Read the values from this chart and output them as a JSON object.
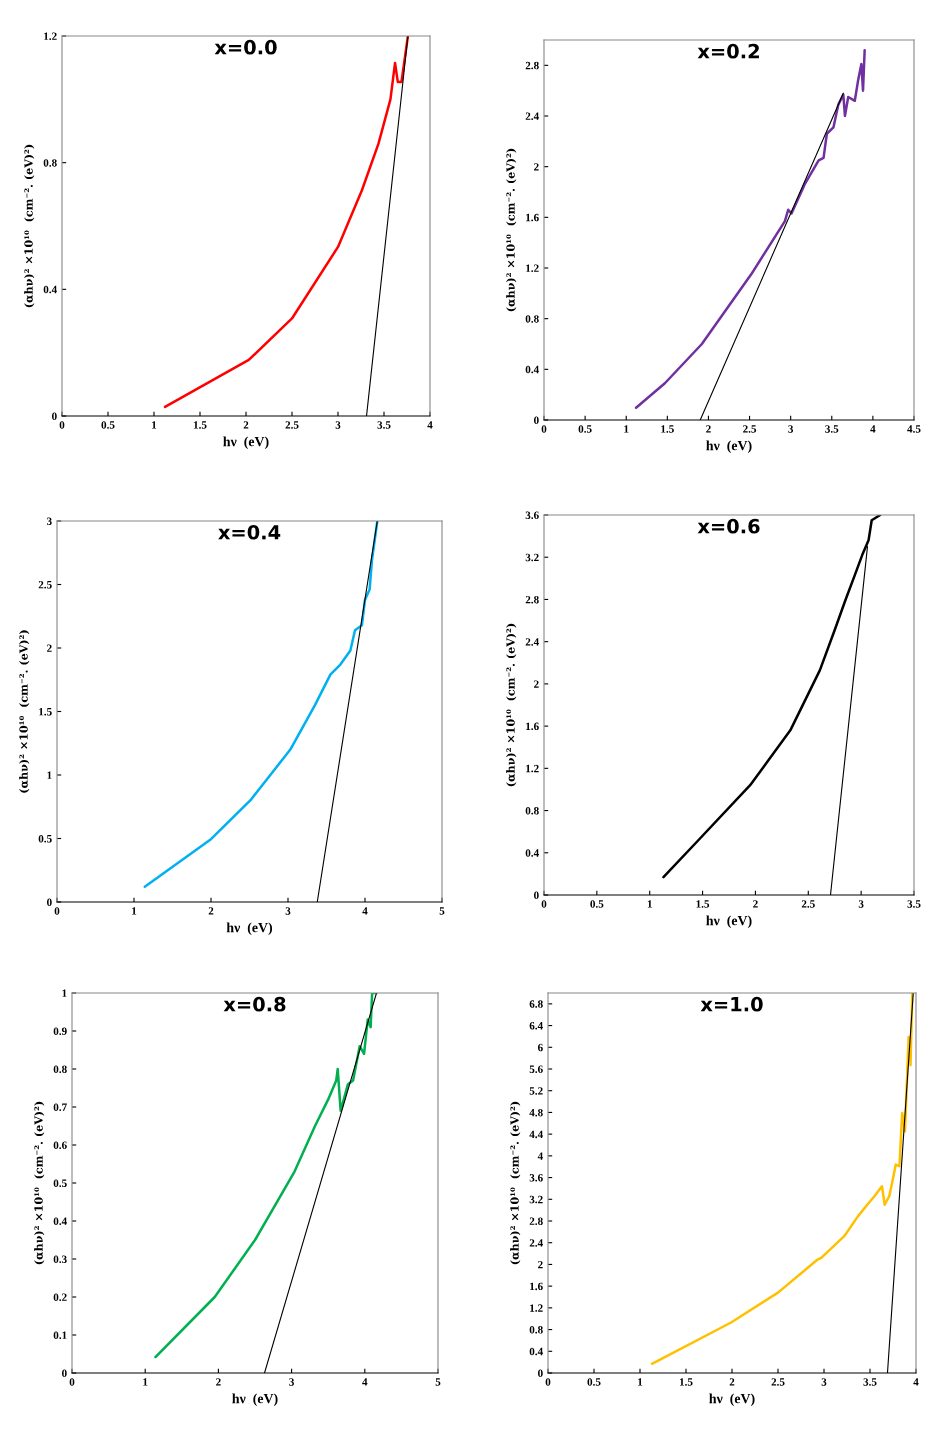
{
  "chart_data": [
    {
      "type": "line",
      "title": "x=0.0",
      "xlabel": "hν  (eV)",
      "ylabel": "(αhν)² ×10¹⁰  (cm⁻². (eV)²)",
      "xlim": [
        0,
        4
      ],
      "ylim": [
        0,
        1.2
      ],
      "xticks": [
        0,
        0.5,
        1,
        1.5,
        2,
        2.5,
        3,
        3.5,
        4
      ],
      "yticks": [
        0,
        0.4,
        0.8,
        1.2
      ],
      "series": [
        {
          "color": "#ff0000",
          "x": [
            1.12,
            2.03,
            2.5,
            3.0,
            3.26,
            3.44,
            3.57,
            3.62,
            3.65,
            3.69,
            3.76
          ],
          "values": [
            0.029,
            0.177,
            0.308,
            0.534,
            0.713,
            0.86,
            1.0,
            1.115,
            1.055,
            1.055,
            1.2
          ]
        },
        {
          "color": "#000000",
          "x": [
            3.31,
            3.76
          ],
          "values": [
            0,
            1.2
          ]
        }
      ]
    },
    {
      "type": "line",
      "title": "x=0.2",
      "xlabel": "hν  (eV)",
      "ylabel": "(αhν)² ×10¹⁰  (cm⁻². (eV)²)",
      "xlim": [
        0,
        4.5
      ],
      "ylim": [
        0,
        3.0
      ],
      "xticks": [
        0,
        0.5,
        1,
        1.5,
        2,
        2.5,
        3,
        3.5,
        4,
        4.5
      ],
      "yticks": [
        0,
        0.4,
        0.8,
        1.2,
        1.6,
        2,
        2.4,
        2.8
      ],
      "series": [
        {
          "color": "#7030a0",
          "x": [
            1.12,
            1.47,
            1.92,
            2.52,
            2.93,
            2.97,
            3.01,
            3.17,
            3.34,
            3.4,
            3.44,
            3.52,
            3.58,
            3.64,
            3.66,
            3.7,
            3.78,
            3.82,
            3.86,
            3.88,
            3.9
          ],
          "values": [
            0.097,
            0.29,
            0.6,
            1.15,
            1.57,
            1.66,
            1.63,
            1.86,
            2.05,
            2.07,
            2.26,
            2.31,
            2.49,
            2.57,
            2.4,
            2.55,
            2.52,
            2.68,
            2.81,
            2.6,
            2.92
          ]
        },
        {
          "color": "#000000",
          "x": [
            1.9,
            3.64
          ],
          "values": [
            0,
            2.58
          ]
        }
      ]
    },
    {
      "type": "line",
      "title": "x=0.4",
      "xlabel": "hν  (eV)",
      "ylabel": "(αhν)² ×10¹⁰  (cm⁻². (eV)²)",
      "xlim": [
        0,
        5
      ],
      "ylim": [
        0,
        3
      ],
      "xticks": [
        0,
        1,
        2,
        3,
        4,
        5
      ],
      "yticks": [
        0,
        0.5,
        1,
        1.5,
        2,
        2.5,
        3
      ],
      "series": [
        {
          "color": "#00b0f0",
          "x": [
            1.14,
            1.99,
            2.51,
            3.03,
            3.35,
            3.55,
            3.68,
            3.81,
            3.87,
            3.96,
            4.0,
            4.06,
            4.09,
            4.16
          ],
          "values": [
            0.12,
            0.49,
            0.8,
            1.2,
            1.55,
            1.79,
            1.87,
            1.98,
            2.14,
            2.18,
            2.38,
            2.46,
            2.69,
            3.0
          ]
        },
        {
          "color": "#000000",
          "x": [
            3.38,
            4.16
          ],
          "values": [
            0,
            3.0
          ]
        }
      ]
    },
    {
      "type": "line",
      "title": "x=0.6",
      "xlabel": "hν  (eV)",
      "ylabel": "(αhν)² ×10¹⁰  (cm⁻². (eV)²)",
      "xlim": [
        0,
        3.5
      ],
      "ylim": [
        0,
        3.6
      ],
      "xticks": [
        0,
        0.5,
        1,
        1.5,
        2,
        2.5,
        3,
        3.5
      ],
      "yticks": [
        0,
        0.4,
        0.8,
        1.2,
        1.6,
        2,
        2.4,
        2.8,
        3.2,
        3.6
      ],
      "series": [
        {
          "color": "#000000",
          "x": [
            1.13,
            1.48,
            1.95,
            2.33,
            2.61,
            2.75,
            2.85,
            2.94,
            3.01,
            3.07,
            3.1,
            3.18
          ],
          "values": [
            0.17,
            0.54,
            1.04,
            1.56,
            2.13,
            2.51,
            2.79,
            3.03,
            3.22,
            3.36,
            3.55,
            3.6
          ]
        },
        {
          "color": "#000000",
          "x": [
            2.71,
            3.06
          ],
          "values": [
            0,
            3.3
          ]
        }
      ]
    },
    {
      "type": "line",
      "title": "x=0.8",
      "xlabel": "hν  (eV)",
      "ylabel": "(αhν)² ×10¹⁰  (cm⁻². (eV)²)",
      "xlim": [
        0,
        5
      ],
      "ylim": [
        0,
        1
      ],
      "xticks": [
        0,
        1,
        2,
        3,
        4,
        5
      ],
      "yticks": [
        0,
        0.1,
        0.2,
        0.3,
        0.4,
        0.5,
        0.6,
        0.7,
        0.8,
        0.9,
        1
      ],
      "series": [
        {
          "color": "#00b050",
          "x": [
            1.14,
            1.95,
            2.5,
            3.04,
            3.32,
            3.5,
            3.61,
            3.63,
            3.67,
            3.77,
            3.84,
            3.93,
            3.99,
            4.04,
            4.08,
            4.1,
            4.16
          ],
          "values": [
            0.042,
            0.2,
            0.35,
            0.53,
            0.65,
            0.72,
            0.77,
            0.8,
            0.69,
            0.76,
            0.77,
            0.86,
            0.84,
            0.93,
            0.91,
            1.0,
            1.0
          ]
        },
        {
          "color": "#000000",
          "x": [
            2.63,
            4.16
          ],
          "values": [
            0,
            1.0
          ]
        }
      ]
    },
    {
      "type": "line",
      "title": "x=1.0",
      "xlabel": "hν  (eV)",
      "ylabel": "(αhν)² ×10¹⁰  (cm⁻². (eV)²)",
      "xlim": [
        0,
        4
      ],
      "ylim": [
        0,
        7.0
      ],
      "xticks": [
        0,
        0.5,
        1,
        1.5,
        2,
        2.5,
        3,
        3.5,
        4
      ],
      "yticks": [
        0,
        0.4,
        0.8,
        1.2,
        1.6,
        2,
        2.4,
        2.8,
        3.2,
        3.6,
        4,
        4.4,
        4.8,
        5.2,
        5.6,
        6,
        6.4,
        6.8
      ],
      "series": [
        {
          "color": "#ffc000",
          "x": [
            1.13,
            1.99,
            2.5,
            2.93,
            2.97,
            3.22,
            3.37,
            3.47,
            3.55,
            3.63,
            3.66,
            3.71,
            3.74,
            3.78,
            3.82,
            3.85,
            3.88,
            3.92,
            3.94,
            3.96
          ],
          "values": [
            0.17,
            0.93,
            1.48,
            2.09,
            2.12,
            2.52,
            2.89,
            3.1,
            3.26,
            3.44,
            3.1,
            3.26,
            3.5,
            3.84,
            3.81,
            4.79,
            4.45,
            6.19,
            5.67,
            6.99
          ]
        },
        {
          "color": "#000000",
          "x": [
            3.69,
            3.97
          ],
          "values": [
            0,
            7.0
          ]
        }
      ]
    }
  ]
}
